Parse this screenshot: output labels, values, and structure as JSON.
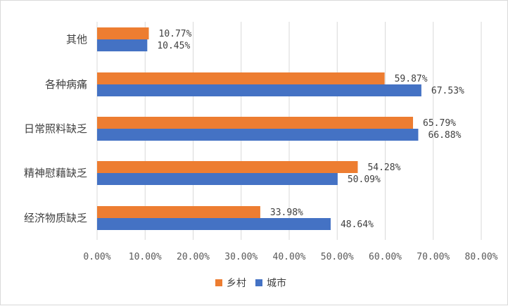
{
  "chart_data": {
    "type": "bar",
    "orientation": "horizontal",
    "categories": [
      "其他",
      "各种病痛",
      "日常照料缺乏",
      "精神慰藉缺乏",
      "经济物质缺乏"
    ],
    "series": [
      {
        "name": "乡村",
        "color": "#ED7D31",
        "values": [
          10.77,
          59.87,
          65.79,
          54.28,
          33.98
        ],
        "labels": [
          "10.77%",
          "59.87%",
          "65.79%",
          "54.28%",
          "33.98%"
        ]
      },
      {
        "name": "城市",
        "color": "#4472C4",
        "values": [
          10.45,
          67.53,
          66.88,
          50.09,
          48.64
        ],
        "labels": [
          "10.45%",
          "67.53%",
          "66.88%",
          "50.09%",
          "48.64%"
        ]
      }
    ],
    "xlim": [
      0,
      80
    ],
    "xticks": [
      0,
      10,
      20,
      30,
      40,
      50,
      60,
      70,
      80
    ],
    "xtick_labels": [
      "0.00%",
      "10.00%",
      "20.00%",
      "30.00%",
      "40.00%",
      "50.00%",
      "60.00%",
      "70.00%",
      "80.00%"
    ],
    "grid": "vertical",
    "legend_position": "bottom"
  }
}
